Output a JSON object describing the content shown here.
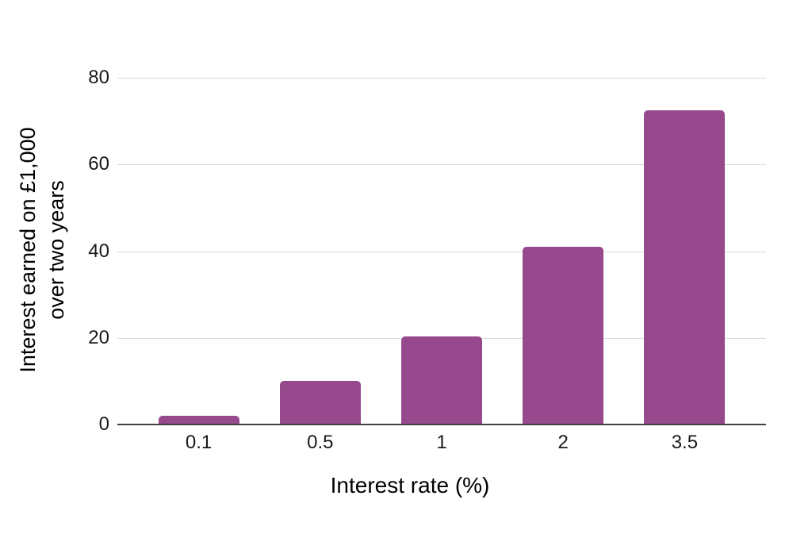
{
  "chart_data": {
    "type": "bar",
    "title": "",
    "xlabel": "Interest rate (%)",
    "ylabel": "Interest earned on £1,000 over two years",
    "ylabel_lines": [
      "Interest earned on £1,000",
      "over two years"
    ],
    "categories": [
      "0.1",
      "0.5",
      "1",
      "2",
      "3.5"
    ],
    "values": [
      2,
      10,
      20.3,
      41,
      72.5
    ],
    "ylim": [
      0,
      80
    ],
    "yticks": [
      0,
      20,
      40,
      60,
      80
    ],
    "grid": true,
    "legend_position": "none",
    "colors": {
      "bar": "#97498E",
      "gridline": "#d9d9d9",
      "axis_line": "#424242",
      "text": "#1a1a1a",
      "background": "#ffffff"
    }
  }
}
